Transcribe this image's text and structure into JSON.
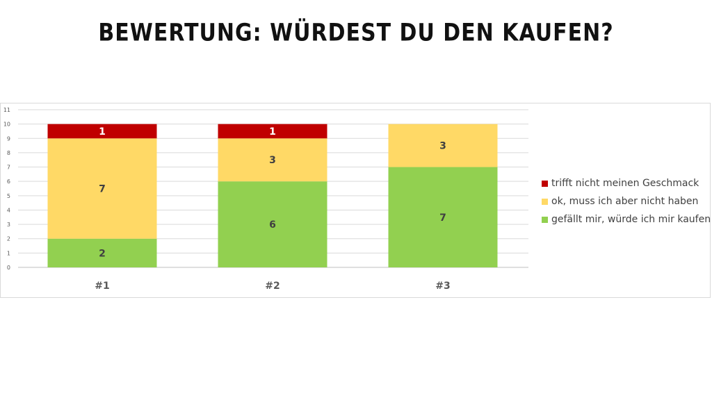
{
  "title": "BEWERTUNG: WÜRDEST DU DEN KAUFEN?",
  "chart_data": {
    "type": "bar",
    "stacked": true,
    "categories": [
      "#1",
      "#2",
      "#3"
    ],
    "ylim": [
      0,
      11
    ],
    "yticks": [
      0,
      1,
      2,
      3,
      4,
      5,
      6,
      7,
      8,
      9,
      10,
      11
    ],
    "grid": true,
    "legend_position": "right",
    "series": [
      {
        "name": "gefällt mir, würde ich mir kaufen",
        "color": "#92d050",
        "values": [
          2,
          6,
          7
        ],
        "labels": [
          "2",
          "6",
          "7"
        ]
      },
      {
        "name": "ok, muss ich aber nicht haben",
        "color": "#ffd966",
        "values": [
          7,
          3,
          3
        ],
        "labels": [
          "7",
          "3",
          "3"
        ]
      },
      {
        "name": "trifft nicht meinen Geschmack",
        "color": "#c00000",
        "values": [
          1,
          1,
          0
        ],
        "labels": [
          "1",
          "1",
          ""
        ]
      }
    ],
    "legend_order": [
      2,
      1,
      0
    ],
    "data_label_colors": [
      "#404040",
      "#404040",
      "#ffffff"
    ],
    "axis_label_color": "#595959",
    "grid_color": "#d9d9d9"
  }
}
